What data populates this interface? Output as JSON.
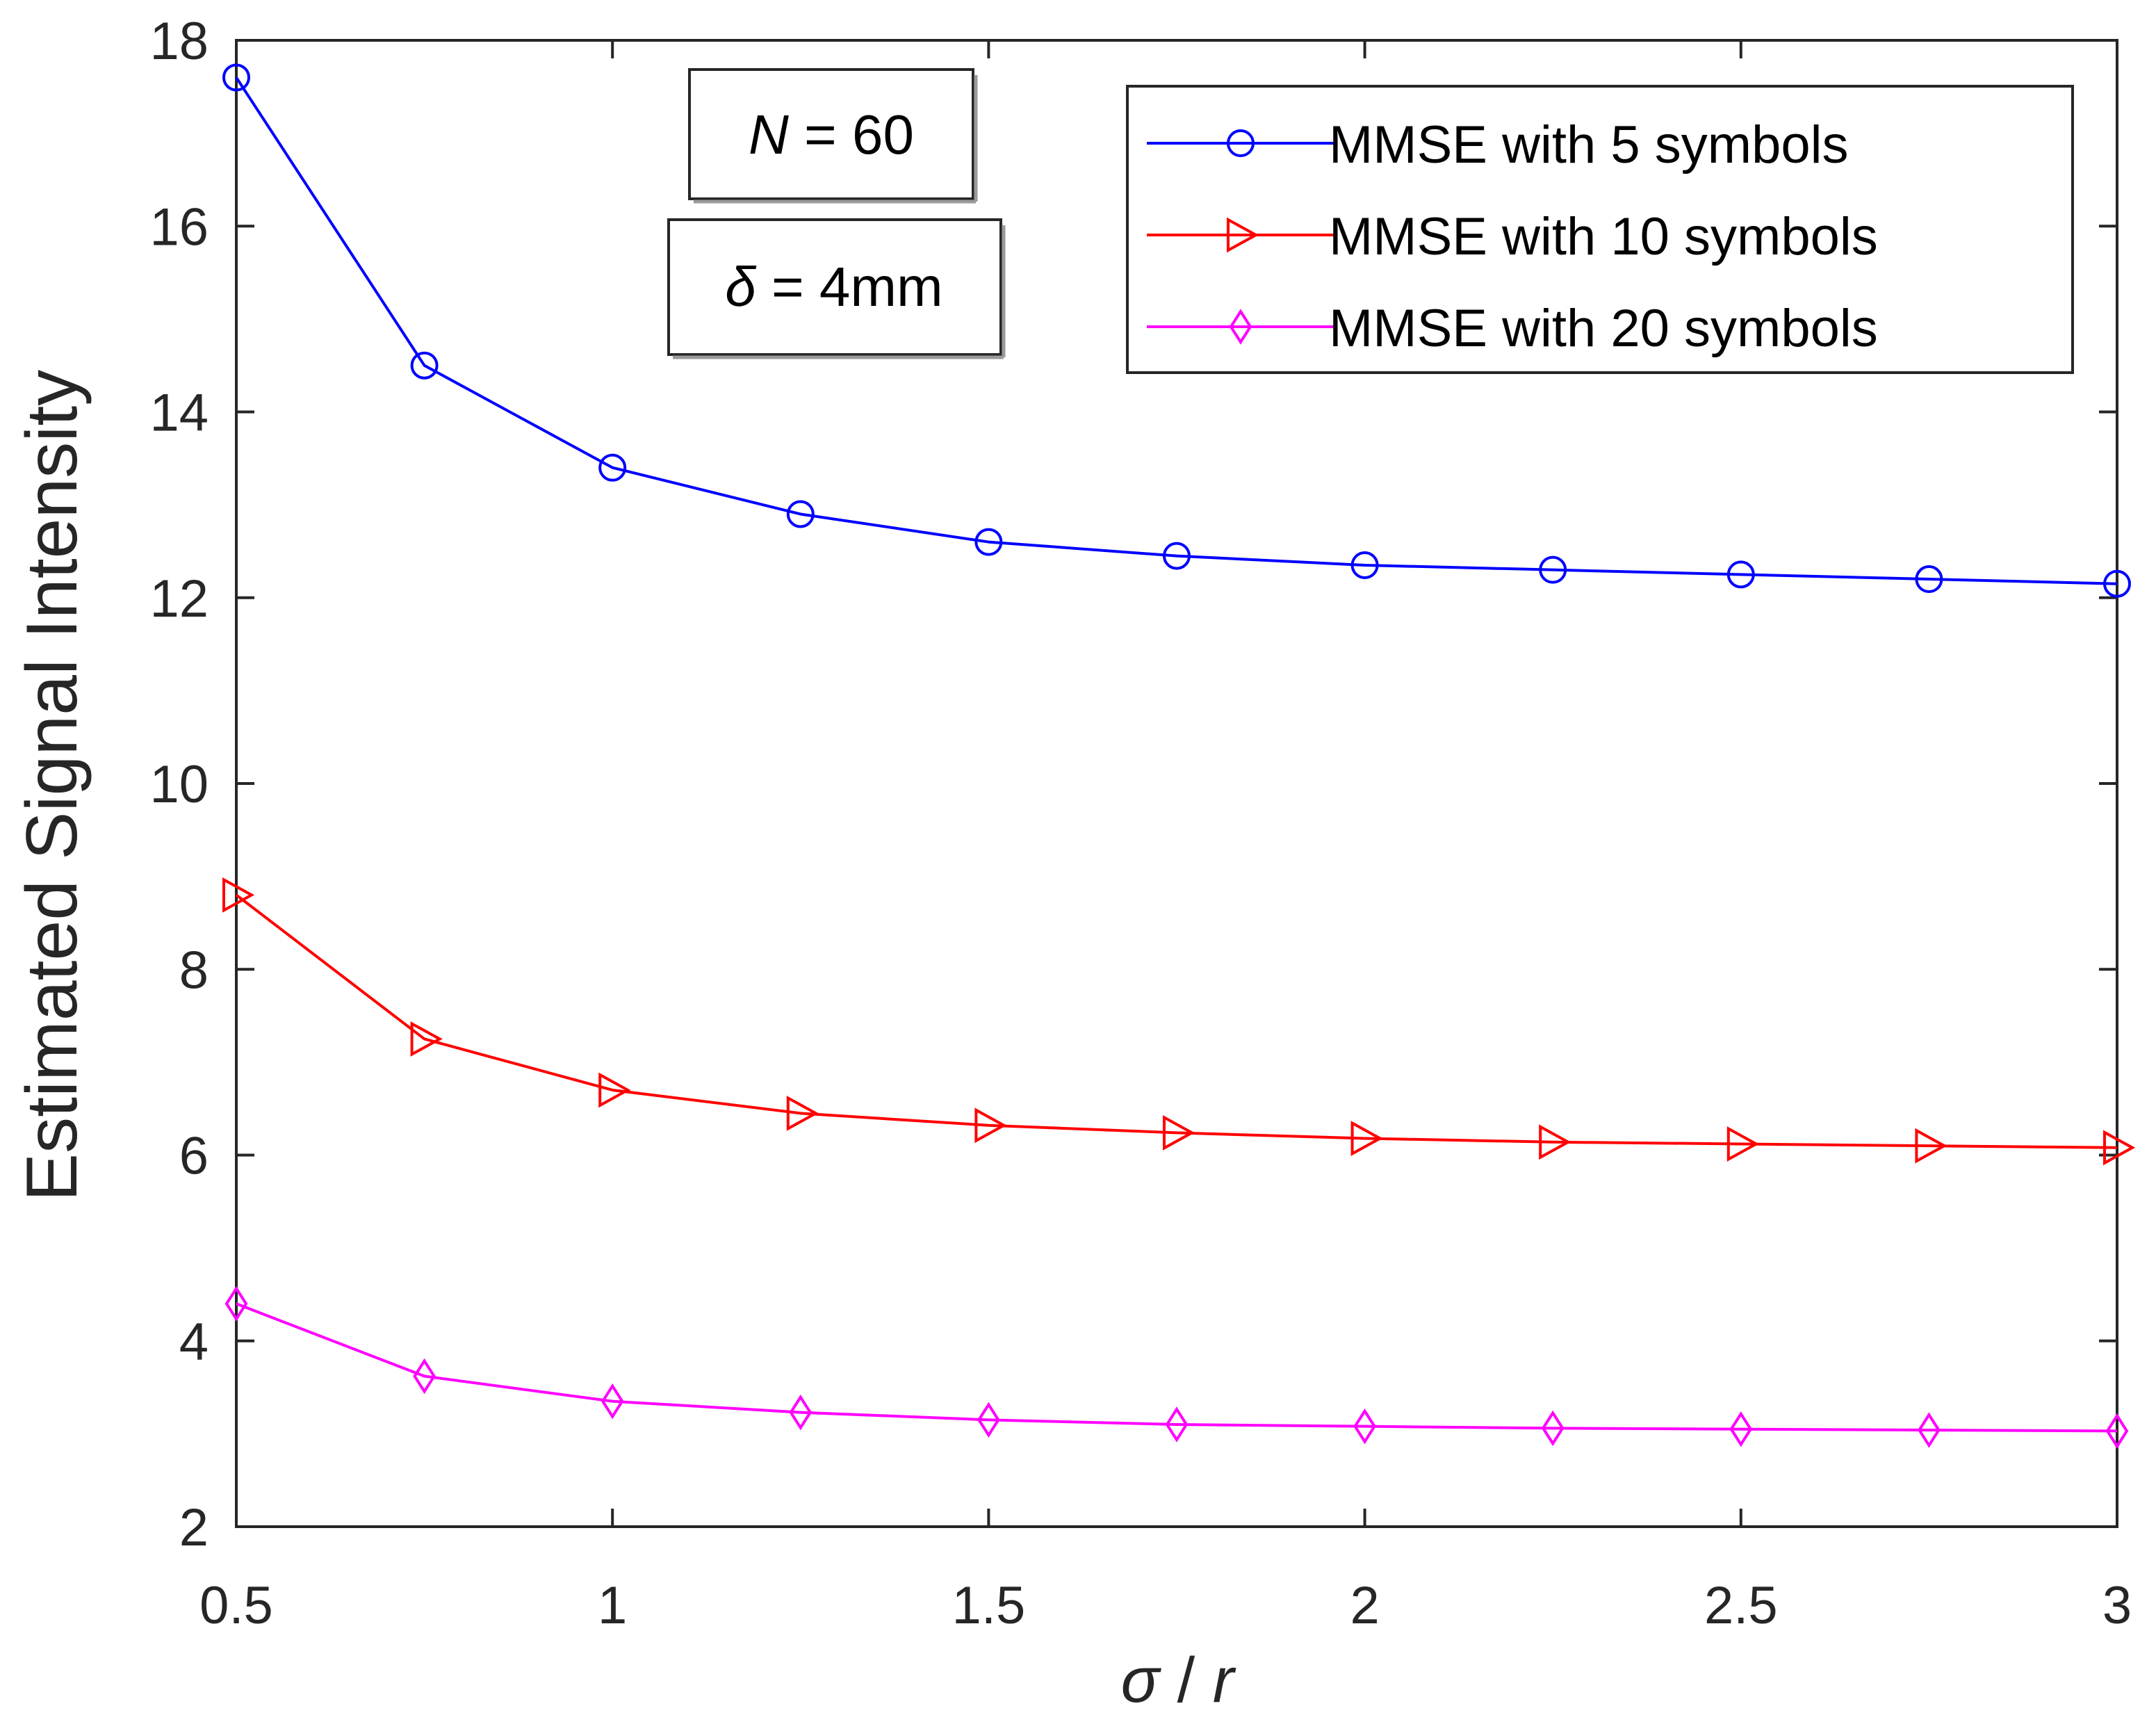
{
  "chart_data": {
    "type": "line",
    "title": "",
    "xlabel": {
      "sym1": "σ",
      "sep": " / ",
      "sym2": "r"
    },
    "ylabel": "Estimated Signal Intensity",
    "xlim": [
      0.5,
      3
    ],
    "ylim": [
      2,
      18
    ],
    "xticks": [
      0.5,
      1,
      1.5,
      2,
      2.5,
      3
    ],
    "xtick_labels": [
      "0.5",
      "1",
      "1.5",
      "2",
      "2.5",
      "3"
    ],
    "yticks": [
      2,
      4,
      6,
      8,
      10,
      12,
      14,
      16,
      18
    ],
    "ytick_labels": [
      "2",
      "4",
      "6",
      "8",
      "10",
      "12",
      "14",
      "16",
      "18"
    ],
    "x": [
      0.5,
      0.75,
      1,
      1.25,
      1.5,
      1.75,
      2,
      2.25,
      2.5,
      2.75,
      3
    ],
    "series": [
      {
        "name": "MMSE with  5  symbols",
        "color": "#0000ff",
        "marker": "circle",
        "values": [
          17.6,
          14.5,
          13.4,
          12.9,
          12.6,
          12.45,
          12.35,
          12.3,
          12.25,
          12.2,
          12.15
        ]
      },
      {
        "name": "MMSE with 10 symbols",
        "color": "#ff0000",
        "marker": "triangle-right",
        "values": [
          8.8,
          7.25,
          6.7,
          6.45,
          6.32,
          6.24,
          6.18,
          6.14,
          6.12,
          6.1,
          6.08
        ]
      },
      {
        "name": "MMSE with 20 symbols",
        "color": "#ff00ff",
        "marker": "diamond",
        "values": [
          4.4,
          3.62,
          3.35,
          3.23,
          3.15,
          3.1,
          3.08,
          3.06,
          3.05,
          3.04,
          3.03
        ]
      }
    ],
    "legend_position": "top-right",
    "annotations": [
      {
        "sym": "N",
        "rest": " = 60"
      },
      {
        "sym": "δ",
        "rest": " = 4mm"
      }
    ],
    "grid": false
  }
}
